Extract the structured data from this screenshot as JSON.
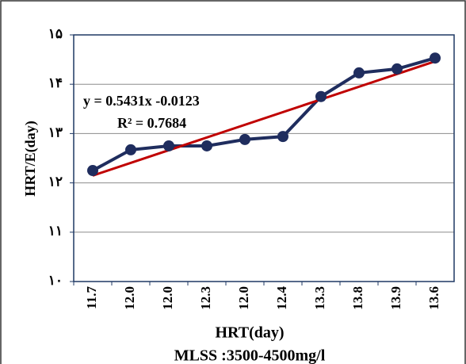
{
  "chart_data": {
    "type": "line",
    "x_label": "HRT(day)",
    "subtitle": "MLSS :3500-4500mg/l",
    "y_label": "HRT/E(day)",
    "categories": [
      "11.7",
      "12.0",
      "12.0",
      "12.3",
      "12.0",
      "12.4",
      "13.3",
      "13.8",
      "13.9",
      "13.6"
    ],
    "series": [
      {
        "color": "#1f2d5e",
        "values": [
          12.25,
          12.67,
          12.75,
          12.75,
          12.88,
          12.94,
          13.75,
          14.23,
          14.31,
          14.53
        ]
      }
    ],
    "trendline": {
      "color": "#c00000",
      "equation": "y = 0.5431x -0.0123",
      "r2": "R² = 0.7684"
    },
    "ylim": [
      10,
      15
    ],
    "yticks": [
      {
        "value": 10,
        "label": "۱۰"
      },
      {
        "value": 11,
        "label": "۱۱"
      },
      {
        "value": 12,
        "label": "۱۲"
      },
      {
        "value": 13,
        "label": "۱۳"
      },
      {
        "value": 14,
        "label": "۱۴"
      },
      {
        "value": 15,
        "label": "۱۵"
      }
    ],
    "grid": true
  }
}
